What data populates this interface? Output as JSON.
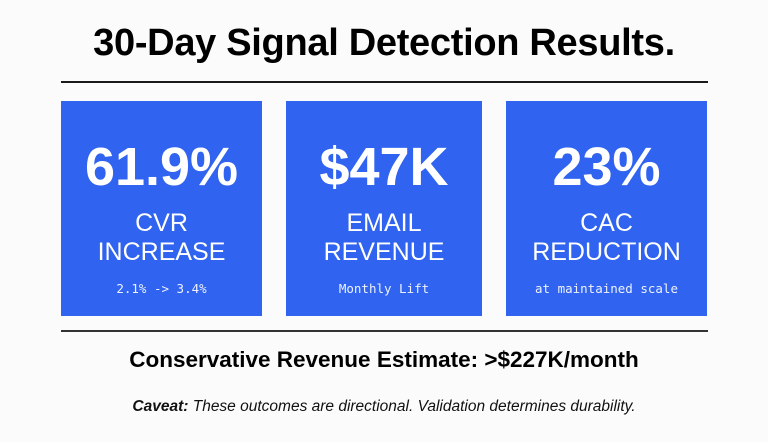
{
  "header": {
    "title": "30-Day Signal Detection Results."
  },
  "metrics": [
    {
      "value": "61.9%",
      "label_line1": "CVR",
      "label_line2": "INCREASE",
      "detail": "2.1% -> 3.4%"
    },
    {
      "value": "$47K",
      "label_line1": "EMAIL",
      "label_line2": "REVENUE",
      "detail": "Monthly Lift"
    },
    {
      "value": "23%",
      "label_line1": "CAC",
      "label_line2": "REDUCTION",
      "detail": "at maintained scale"
    }
  ],
  "summary": {
    "estimate": "Conservative Revenue Estimate: >$227K/month",
    "caveat_label": "Caveat:",
    "caveat_text": " These outcomes are directional. Validation determines durability."
  },
  "colors": {
    "card_blue": "#2f63f0",
    "text": "#000000",
    "background": "#fbfbfb"
  }
}
